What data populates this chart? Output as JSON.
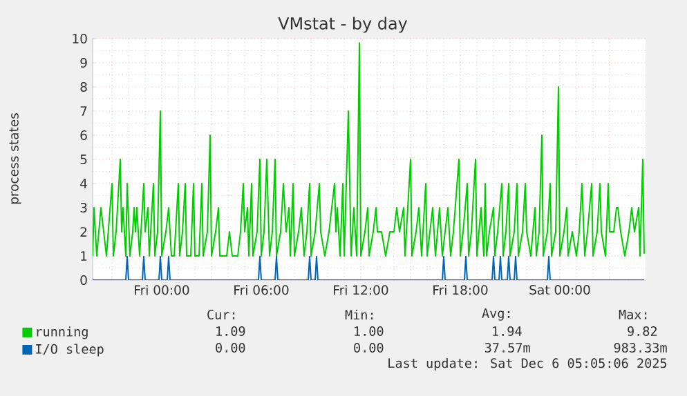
{
  "chart_data": {
    "type": "line",
    "title": "VMstat - by day",
    "ylabel": "process states",
    "xlim": [
      "2025-12-04T19:50",
      "2025-12-06T05:10"
    ],
    "ylim": [
      0,
      10
    ],
    "xticks": [
      {
        "value": "2025-12-04T21:00",
        "label": null
      },
      {
        "value": "2025-12-05T00:00",
        "label": "Fri 00:00"
      },
      {
        "value": "2025-12-05T03:00",
        "label": null
      },
      {
        "value": "2025-12-05T06:00",
        "label": "Fri 06:00"
      },
      {
        "value": "2025-12-05T09:00",
        "label": null
      },
      {
        "value": "2025-12-05T12:00",
        "label": "Fri 12:00"
      },
      {
        "value": "2025-12-05T15:00",
        "label": null
      },
      {
        "value": "2025-12-05T18:00",
        "label": "Fri 18:00"
      },
      {
        "value": "2025-12-05T21:00",
        "label": null
      },
      {
        "value": "2025-12-06T00:00",
        "label": "Sat 00:00"
      },
      {
        "value": "2025-12-06T03:00",
        "label": null
      }
    ],
    "yticks": [
      0,
      1,
      2,
      3,
      4,
      5,
      6,
      7,
      8,
      9,
      10
    ],
    "grid": true,
    "legend": "bottom",
    "line_style": "solid",
    "series": [
      {
        "name": "running",
        "color": "#00cc00",
        "x": [
          "2025-12-04T19:50",
          "2025-12-04T19:55",
          "2025-12-04T20:05",
          "2025-12-04T20:20",
          "2025-12-04T20:30",
          "2025-12-04T20:40",
          "2025-12-04T21:00",
          "2025-12-04T21:05",
          "2025-12-04T21:15",
          "2025-12-04T21:30",
          "2025-12-04T21:35",
          "2025-12-04T21:40",
          "2025-12-04T21:50",
          "2025-12-04T21:55",
          "2025-12-04T22:05",
          "2025-12-04T22:15",
          "2025-12-04T22:20",
          "2025-12-04T22:25",
          "2025-12-04T22:30",
          "2025-12-04T22:40",
          "2025-12-04T22:55",
          "2025-12-04T23:00",
          "2025-12-04T23:10",
          "2025-12-04T23:15",
          "2025-12-04T23:30",
          "2025-12-04T23:35",
          "2025-12-04T23:45",
          "2025-12-04T23:55",
          "2025-12-05T00:00",
          "2025-12-05T00:15",
          "2025-12-05T00:25",
          "2025-12-05T00:35",
          "2025-12-05T00:45",
          "2025-12-05T01:00",
          "2025-12-05T01:05",
          "2025-12-05T01:15",
          "2025-12-05T01:25",
          "2025-12-05T01:30",
          "2025-12-05T01:45",
          "2025-12-05T01:55",
          "2025-12-05T02:00",
          "2025-12-05T02:15",
          "2025-12-05T02:25",
          "2025-12-05T02:30",
          "2025-12-05T02:45",
          "2025-12-05T02:55",
          "2025-12-05T03:00",
          "2025-12-05T03:15",
          "2025-12-05T03:25",
          "2025-12-05T03:30",
          "2025-12-05T03:55",
          "2025-12-05T04:05",
          "2025-12-05T04:15",
          "2025-12-05T04:35",
          "2025-12-05T04:45",
          "2025-12-05T04:55",
          "2025-12-05T05:00",
          "2025-12-05T05:10",
          "2025-12-05T05:15",
          "2025-12-05T05:25",
          "2025-12-05T05:30",
          "2025-12-05T05:45",
          "2025-12-05T05:55",
          "2025-12-05T06:00",
          "2025-12-05T06:10",
          "2025-12-05T06:20",
          "2025-12-05T06:30",
          "2025-12-05T06:40",
          "2025-12-05T06:50",
          "2025-12-05T06:55",
          "2025-12-05T07:10",
          "2025-12-05T07:20",
          "2025-12-05T07:30",
          "2025-12-05T07:40",
          "2025-12-05T07:45",
          "2025-12-05T07:55",
          "2025-12-05T08:00",
          "2025-12-05T08:15",
          "2025-12-05T08:25",
          "2025-12-05T08:35",
          "2025-12-05T08:45",
          "2025-12-05T08:55",
          "2025-12-05T09:00",
          "2025-12-05T09:15",
          "2025-12-05T09:30",
          "2025-12-05T09:35",
          "2025-12-05T09:50",
          "2025-12-05T10:05",
          "2025-12-05T10:25",
          "2025-12-05T10:30",
          "2025-12-05T10:35",
          "2025-12-05T10:45",
          "2025-12-05T10:55",
          "2025-12-05T11:00",
          "2025-12-05T11:15",
          "2025-12-05T11:25",
          "2025-12-05T11:35",
          "2025-12-05T11:45",
          "2025-12-05T11:55",
          "2025-12-05T12:00",
          "2025-12-05T12:15",
          "2025-12-05T12:25",
          "2025-12-05T12:30",
          "2025-12-05T12:45",
          "2025-12-05T12:55",
          "2025-12-05T13:00",
          "2025-12-05T13:15",
          "2025-12-05T13:30",
          "2025-12-05T13:45",
          "2025-12-05T14:00",
          "2025-12-05T14:10",
          "2025-12-05T14:20",
          "2025-12-05T14:35",
          "2025-12-05T14:40",
          "2025-12-05T15:00",
          "2025-12-05T15:05",
          "2025-12-05T15:20",
          "2025-12-05T15:30",
          "2025-12-05T15:40",
          "2025-12-05T15:55",
          "2025-12-05T16:00",
          "2025-12-05T16:10",
          "2025-12-05T16:20",
          "2025-12-05T16:30",
          "2025-12-05T16:45",
          "2025-12-05T16:55",
          "2025-12-05T17:05",
          "2025-12-05T17:15",
          "2025-12-05T17:25",
          "2025-12-05T17:35",
          "2025-12-05T17:55",
          "2025-12-05T18:00",
          "2025-12-05T18:10",
          "2025-12-05T18:25",
          "2025-12-05T18:30",
          "2025-12-05T18:40",
          "2025-12-05T18:55",
          "2025-12-05T19:00",
          "2025-12-05T19:15",
          "2025-12-05T19:25",
          "2025-12-05T19:30",
          "2025-12-05T19:35",
          "2025-12-05T19:45",
          "2025-12-05T20:00",
          "2025-12-05T20:05",
          "2025-12-05T20:15",
          "2025-12-05T20:30",
          "2025-12-05T20:35",
          "2025-12-05T20:45",
          "2025-12-05T20:55",
          "2025-12-05T21:00",
          "2025-12-05T21:15",
          "2025-12-05T21:25",
          "2025-12-05T21:30",
          "2025-12-05T21:45",
          "2025-12-05T21:55",
          "2025-12-05T22:00",
          "2025-12-05T22:15",
          "2025-12-05T22:30",
          "2025-12-05T22:35",
          "2025-12-05T22:45",
          "2025-12-05T22:55",
          "2025-12-05T23:00",
          "2025-12-05T23:15",
          "2025-12-05T23:25",
          "2025-12-05T23:30",
          "2025-12-05T23:45",
          "2025-12-05T23:55",
          "2025-12-06T00:00",
          "2025-12-06T00:15",
          "2025-12-06T00:25",
          "2025-12-06T00:30",
          "2025-12-06T00:45",
          "2025-12-06T01:00",
          "2025-12-06T01:10",
          "2025-12-06T01:20",
          "2025-12-06T01:30",
          "2025-12-06T01:40",
          "2025-12-06T01:55",
          "2025-12-06T02:00",
          "2025-12-06T02:15",
          "2025-12-06T02:25",
          "2025-12-06T02:30",
          "2025-12-06T02:45",
          "2025-12-06T02:55",
          "2025-12-06T03:00",
          "2025-12-06T03:15",
          "2025-12-06T03:25",
          "2025-12-06T03:30",
          "2025-12-06T03:40",
          "2025-12-06T03:55",
          "2025-12-06T04:10",
          "2025-12-06T04:20",
          "2025-12-06T04:30",
          "2025-12-06T04:45",
          "2025-12-06T04:50",
          "2025-12-06T05:00",
          "2025-12-06T05:05"
        ],
        "values": [
          1,
          3,
          1,
          3,
          2,
          1,
          4,
          1,
          2,
          5,
          2,
          3,
          1,
          4,
          1,
          2,
          3,
          2,
          3,
          1,
          4,
          2,
          3,
          1,
          4,
          1,
          2,
          7,
          1,
          2,
          3,
          1,
          1,
          4,
          1,
          2,
          4,
          1,
          1,
          4,
          1,
          1,
          4,
          1,
          2,
          6,
          1,
          2,
          3,
          1,
          1,
          2,
          1,
          1,
          2,
          4,
          2,
          3,
          1,
          4,
          1,
          2,
          5,
          1,
          2,
          5,
          1,
          2,
          5,
          1,
          2,
          4,
          2,
          3,
          1,
          4,
          1,
          2,
          3,
          1,
          2,
          4,
          1,
          2,
          4,
          2,
          1,
          2,
          4,
          2,
          3,
          1,
          4,
          1,
          7,
          1,
          3,
          1,
          9.82,
          1,
          2,
          3,
          1,
          2,
          3,
          2,
          2,
          1,
          2,
          2,
          3,
          2,
          3,
          1,
          5,
          1,
          2,
          3,
          1,
          4,
          1,
          2,
          3,
          1,
          3,
          1,
          2,
          3,
          1,
          2,
          5,
          1,
          2,
          4,
          1,
          2,
          5,
          1,
          3,
          1,
          4,
          1,
          2,
          3,
          1,
          2,
          4,
          1,
          2,
          4,
          1,
          2,
          4,
          1,
          2,
          4,
          2,
          1,
          3,
          1,
          2,
          6,
          1,
          2,
          4,
          1,
          2,
          8,
          1,
          2,
          3,
          1,
          2,
          1,
          2,
          4,
          1,
          2,
          4,
          1,
          2,
          4,
          2,
          1,
          4,
          2,
          2,
          3,
          3,
          2,
          1,
          2,
          3,
          2,
          3,
          1,
          5,
          1.09
        ]
      },
      {
        "name": "I/O sleep",
        "color": "#0066b3",
        "x": [
          "2025-12-04T19:50",
          "2025-12-04T21:50",
          "2025-12-04T21:55",
          "2025-12-04T22:00",
          "2025-12-04T22:50",
          "2025-12-04T22:55",
          "2025-12-04T23:00",
          "2025-12-04T23:50",
          "2025-12-04T23:55",
          "2025-12-05T00:00",
          "2025-12-05T00:20",
          "2025-12-05T00:25",
          "2025-12-05T00:30",
          "2025-12-05T05:50",
          "2025-12-05T05:55",
          "2025-12-05T06:00",
          "2025-12-05T06:50",
          "2025-12-05T06:55",
          "2025-12-05T07:00",
          "2025-12-05T08:50",
          "2025-12-05T08:55",
          "2025-12-05T09:00",
          "2025-12-05T09:15",
          "2025-12-05T09:20",
          "2025-12-05T09:25",
          "2025-12-05T16:55",
          "2025-12-05T17:00",
          "2025-12-05T17:05",
          "2025-12-05T18:15",
          "2025-12-05T18:20",
          "2025-12-05T18:25",
          "2025-12-05T19:55",
          "2025-12-05T20:00",
          "2025-12-05T20:05",
          "2025-12-05T20:20",
          "2025-12-05T20:25",
          "2025-12-05T20:30",
          "2025-12-05T20:50",
          "2025-12-05T20:55",
          "2025-12-05T21:00",
          "2025-12-05T21:15",
          "2025-12-05T21:20",
          "2025-12-05T21:25",
          "2025-12-05T23:15",
          "2025-12-05T23:20",
          "2025-12-05T23:25",
          "2025-12-06T05:05"
        ],
        "values": [
          0,
          0,
          0.98,
          0,
          0,
          0.98,
          0,
          0,
          0.98,
          0,
          0,
          0.98,
          0,
          0,
          0.98,
          0,
          0,
          0.98,
          0,
          0,
          0.98,
          0,
          0,
          0.98,
          0,
          0,
          0.98,
          0,
          0,
          0.98,
          0,
          0,
          0.98,
          0,
          0,
          0.98,
          0,
          0,
          0.98,
          0,
          0,
          0.98,
          0,
          0,
          0.98,
          0,
          0
        ]
      }
    ],
    "annotations": [
      "Cur:",
      "Min:",
      "Avg:",
      "Max:",
      "1.09",
      "1.00",
      "1.94",
      "9.82",
      "0.00",
      "0.00",
      "37.57m",
      "983.33m",
      "Last update: Sat Dec  6 05:05:06 2025"
    ]
  }
}
